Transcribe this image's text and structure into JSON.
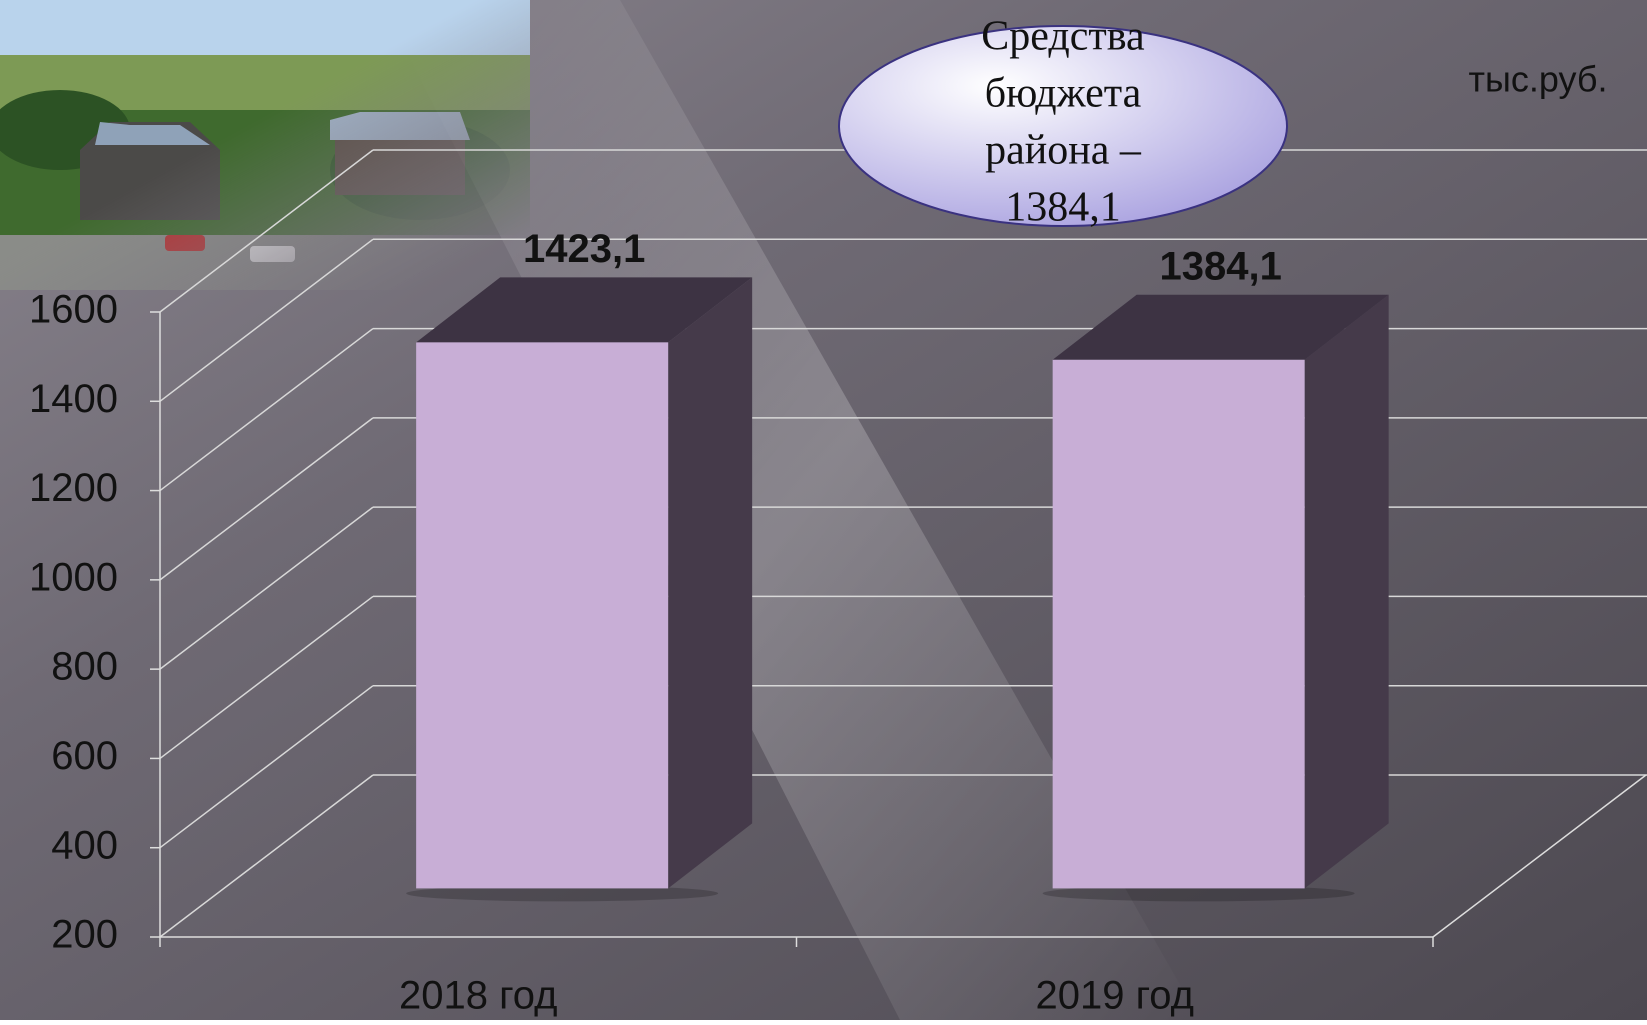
{
  "chart_data": {
    "type": "bar3d",
    "unit_label": "тыс.руб.",
    "annotation": [
      "Средства",
      "бюджета",
      "района –",
      "1384,1"
    ],
    "categories": [
      "2018 год",
      "2019 год"
    ],
    "values": [
      1423.1,
      1384.1
    ],
    "value_labels": [
      "1423,1",
      "1384,1"
    ],
    "color": "#c8aed6",
    "ylim": [
      200,
      1600
    ],
    "yticks": [
      200,
      400,
      600,
      800,
      1000,
      1200,
      1400,
      1600
    ],
    "grid": true
  }
}
